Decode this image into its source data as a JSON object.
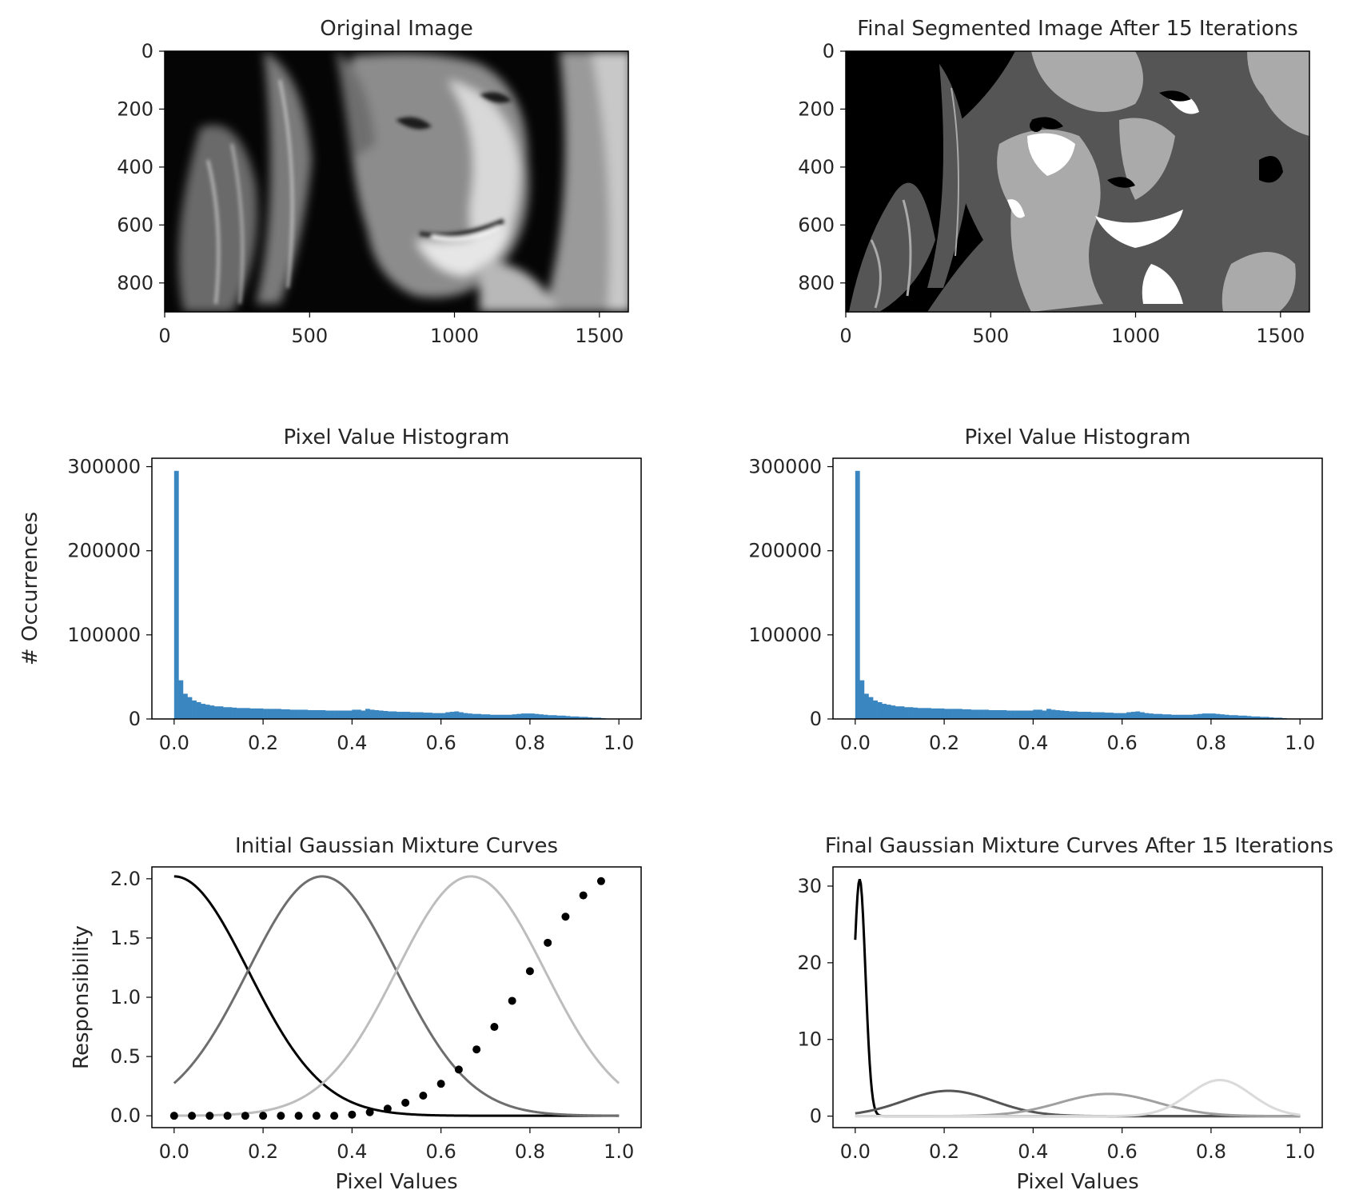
{
  "chart_data": [
    {
      "type": "image",
      "panel": "top-left",
      "title": "Original Image",
      "xlim": [
        0,
        1600
      ],
      "ylim": [
        0,
        900
      ],
      "y_inverted": true,
      "xticks": [
        0,
        500,
        1000,
        1500
      ],
      "yticks": [
        0,
        200,
        400,
        600,
        800
      ],
      "colormap": "gray"
    },
    {
      "type": "image",
      "panel": "top-right",
      "title": "Final Segmented Image After 15 Iterations",
      "xlim": [
        0,
        1600
      ],
      "ylim": [
        0,
        900
      ],
      "y_inverted": true,
      "xticks": [
        0,
        500,
        1000,
        1500
      ],
      "yticks": [
        0,
        200,
        400,
        600,
        800
      ],
      "gray_levels": [
        "#000000",
        "#555555",
        "#aaaaaa",
        "#ffffff"
      ]
    },
    {
      "type": "bar",
      "panel": "middle-left",
      "title": "Pixel Value Histogram",
      "ylabel": "# Occurrences",
      "xlim": [
        -0.05,
        1.05
      ],
      "ylim": [
        0,
        310000
      ],
      "xticks": [
        0.0,
        0.2,
        0.4,
        0.6,
        0.8,
        1.0
      ],
      "yticks": [
        0,
        100000,
        200000,
        300000
      ],
      "color": "#3a86c0",
      "bin_width": 0.01,
      "bin_starts": [
        0.0,
        0.01,
        0.02,
        0.03,
        0.04,
        0.05,
        0.06,
        0.07,
        0.08,
        0.09,
        0.1,
        0.11,
        0.12,
        0.13,
        0.14,
        0.15,
        0.16,
        0.17,
        0.18,
        0.19,
        0.2,
        0.21,
        0.22,
        0.23,
        0.24,
        0.25,
        0.26,
        0.27,
        0.28,
        0.29,
        0.3,
        0.31,
        0.32,
        0.33,
        0.34,
        0.35,
        0.36,
        0.37,
        0.38,
        0.39,
        0.4,
        0.41,
        0.42,
        0.43,
        0.44,
        0.45,
        0.46,
        0.47,
        0.48,
        0.49,
        0.5,
        0.51,
        0.52,
        0.53,
        0.54,
        0.55,
        0.56,
        0.57,
        0.58,
        0.59,
        0.6,
        0.61,
        0.62,
        0.63,
        0.64,
        0.65,
        0.66,
        0.67,
        0.68,
        0.69,
        0.7,
        0.71,
        0.72,
        0.73,
        0.74,
        0.75,
        0.76,
        0.77,
        0.78,
        0.79,
        0.8,
        0.81,
        0.82,
        0.83,
        0.84,
        0.85,
        0.86,
        0.87,
        0.88,
        0.89,
        0.9,
        0.91,
        0.92,
        0.93,
        0.94,
        0.95,
        0.96,
        0.97
      ],
      "values": [
        295000,
        46000,
        30000,
        26000,
        22000,
        20000,
        18000,
        17000,
        16000,
        15000,
        15000,
        14000,
        14000,
        13500,
        13000,
        13000,
        13000,
        12500,
        12500,
        12500,
        12000,
        12000,
        12000,
        12000,
        11500,
        11500,
        11000,
        11000,
        11000,
        11000,
        10500,
        10500,
        10500,
        10500,
        10000,
        10000,
        10000,
        10000,
        10000,
        10000,
        11000,
        11000,
        10000,
        12000,
        11000,
        10500,
        10000,
        9500,
        9000,
        9000,
        8500,
        8500,
        8500,
        8000,
        8000,
        8000,
        7500,
        7500,
        7000,
        7000,
        7000,
        8000,
        8500,
        9000,
        8000,
        7000,
        6500,
        6000,
        6000,
        5500,
        5500,
        5000,
        5000,
        5000,
        5000,
        5000,
        5500,
        6000,
        6500,
        6500,
        6500,
        6000,
        5500,
        5000,
        4500,
        4500,
        4000,
        4000,
        3500,
        3000,
        3000,
        2500,
        2500,
        2000,
        1500,
        1500,
        1000,
        500
      ]
    },
    {
      "type": "bar",
      "panel": "middle-right",
      "title": "Pixel Value Histogram",
      "xlim": [
        -0.05,
        1.05
      ],
      "ylim": [
        0,
        310000
      ],
      "xticks": [
        0.0,
        0.2,
        0.4,
        0.6,
        0.8,
        1.0
      ],
      "yticks": [
        0,
        100000,
        200000,
        300000
      ],
      "color": "#3a86c0",
      "same_data_as_panel": "middle-left"
    },
    {
      "type": "line",
      "panel": "bottom-left",
      "title": "Initial Gaussian Mixture Curves",
      "xlabel": "Pixel Values",
      "ylabel": "Responsibility",
      "xlim": [
        -0.05,
        1.05
      ],
      "ylim": [
        -0.1,
        2.1
      ],
      "xticks": [
        0.0,
        0.2,
        0.4,
        0.6,
        0.8,
        1.0
      ],
      "yticks": [
        0.0,
        0.5,
        1.0,
        1.5,
        2.0
      ],
      "curves": [
        {
          "mean": 0.0,
          "sd": 0.1667,
          "amp": 2.02,
          "color": "#000000"
        },
        {
          "mean": 0.333,
          "sd": 0.1667,
          "amp": 2.02,
          "color": "#6e6e6e"
        },
        {
          "mean": 0.667,
          "sd": 0.1667,
          "amp": 2.02,
          "color": "#bdbdbd"
        }
      ],
      "scatter": {
        "x": [
          0.0,
          0.04,
          0.08,
          0.12,
          0.16,
          0.2,
          0.24,
          0.28,
          0.32,
          0.36,
          0.4,
          0.44,
          0.48,
          0.52,
          0.56,
          0.6,
          0.64,
          0.68,
          0.72,
          0.76,
          0.8,
          0.84,
          0.88,
          0.92,
          0.96
        ],
        "y": [
          0.0,
          0.0,
          0.0,
          0.0,
          0.0,
          0.0,
          0.0,
          0.0,
          0.0,
          0.0,
          0.01,
          0.03,
          0.06,
          0.11,
          0.17,
          0.27,
          0.39,
          0.56,
          0.75,
          0.97,
          1.22,
          1.46,
          1.68,
          1.86,
          1.98
        ],
        "color": "#000000"
      }
    },
    {
      "type": "line",
      "panel": "bottom-right",
      "title": "Final Gaussian Mixture Curves After 15 Iterations",
      "xlabel": "Pixel Values",
      "xlim": [
        -0.05,
        1.05
      ],
      "ylim": [
        -1.5,
        32.5
      ],
      "xticks": [
        0.0,
        0.2,
        0.4,
        0.6,
        0.8,
        1.0
      ],
      "yticks": [
        0,
        10,
        20,
        30
      ],
      "curves": [
        {
          "mean": 0.01,
          "sd": 0.013,
          "amp": 30.9,
          "color": "#000000"
        },
        {
          "mean": 0.21,
          "sd": 0.1,
          "amp": 3.3,
          "color": "#555555"
        },
        {
          "mean": 0.57,
          "sd": 0.11,
          "amp": 2.9,
          "color": "#a0a0a0"
        },
        {
          "mean": 0.82,
          "sd": 0.07,
          "amp": 4.7,
          "color": "#dadada"
        }
      ]
    }
  ]
}
